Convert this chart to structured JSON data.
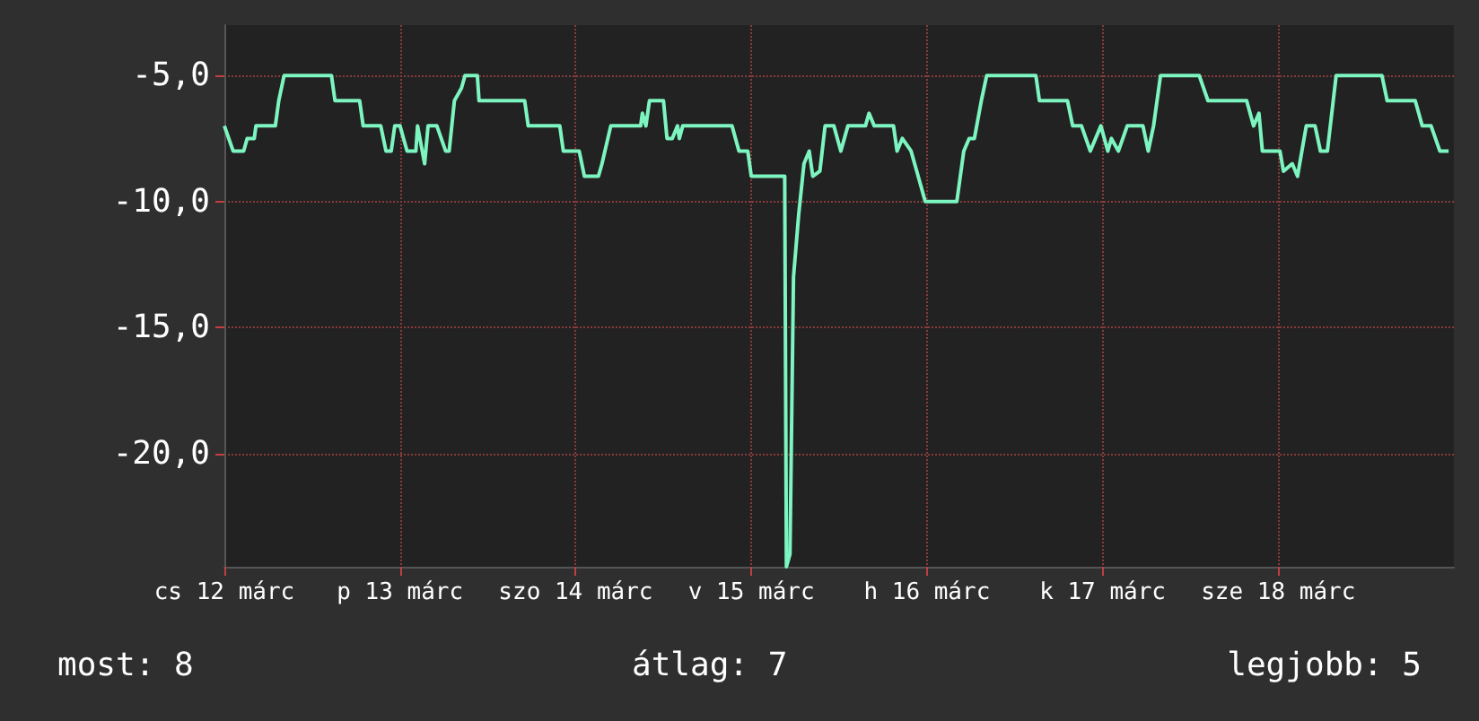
{
  "chart_data": {
    "type": "line",
    "x": [
      "--03-12T00:00",
      "--03-12T01:12",
      "--03-12T02:38",
      "--03-12T03:07",
      "--03-12T04:05",
      "--03-12T04:19",
      "--03-12T06:58",
      "--03-12T07:26",
      "--03-12T08:10",
      "--03-12T14:38",
      "--03-12T15:07",
      "--03-12T18:29",
      "--03-12T18:58",
      "--03-12T21:22",
      "--03-12T22:05",
      "--03-12T22:48",
      "--03-12T23:17",
      "--03-13T00:00",
      "--03-13T00:58",
      "--03-13T02:10",
      "--03-13T02:24",
      "--03-13T03:22",
      "--03-13T03:50",
      "--03-13T05:02",
      "--03-13T06:14",
      "--03-13T06:43",
      "--03-13T07:26",
      "--03-13T08:24",
      "--03-13T08:53",
      "--03-13T10:34",
      "--03-13T10:48",
      "--03-13T17:02",
      "--03-13T17:31",
      "--03-13T20:10",
      "--03-13T21:50",
      "--03-13T22:19",
      "--03-14T00:29",
      "--03-14T01:12",
      "--03-14T03:07",
      "--03-14T03:36",
      "--03-14T04:48",
      "--03-14T08:53",
      "--03-14T09:07",
      "--03-14T09:36",
      "--03-14T10:05",
      "--03-14T12:00",
      "--03-14T12:29",
      "--03-14T13:12",
      "--03-14T13:55",
      "--03-14T14:10",
      "--03-14T14:38",
      "--03-14T21:22",
      "--03-14T22:19",
      "--03-14T23:31",
      "--03-15T00:00",
      "--03-15T04:34",
      "--03-15T04:48",
      "--03-15T05:17",
      "--03-15T05:46",
      "--03-15T06:29",
      "--03-15T07:12",
      "--03-15T07:55",
      "--03-15T08:24",
      "--03-15T09:22",
      "--03-15T10:05",
      "--03-15T11:17",
      "--03-15T12:14",
      "--03-15T13:12",
      "--03-15T15:36",
      "--03-15T16:05",
      "--03-15T16:48",
      "--03-15T19:26",
      "--03-15T19:55",
      "--03-15T20:38",
      "--03-15T21:50",
      "--03-15T22:48",
      "--03-15T23:46",
      "--03-16T04:05",
      "--03-16T05:02",
      "--03-16T05:46",
      "--03-16T06:29",
      "--03-16T07:26",
      "--03-16T08:10",
      "--03-16T14:53",
      "--03-16T15:22",
      "--03-16T19:12",
      "--03-16T19:55",
      "--03-16T21:07",
      "--03-16T22:19",
      "--03-16T23:46",
      "--03-17T00:43",
      "--03-17T01:12",
      "--03-17T02:10",
      "--03-17T03:22",
      "--03-17T05:31",
      "--03-17T06:14",
      "--03-17T06:58",
      "--03-17T07:55",
      "--03-17T13:12",
      "--03-17T14:24",
      "--03-17T19:41",
      "--03-17T20:38",
      "--03-17T21:22",
      "--03-17T21:50",
      "--03-18T00:14",
      "--03-18T00:43",
      "--03-18T01:55",
      "--03-18T02:38",
      "--03-18T03:50",
      "--03-18T05:02",
      "--03-18T05:46",
      "--03-18T06:43",
      "--03-18T07:55",
      "--03-18T14:10",
      "--03-18T14:53",
      "--03-18T18:43",
      "--03-18T19:41",
      "--03-18T20:53",
      "--03-18T22:05",
      "--03-18T23:17"
    ],
    "values": [
      -7,
      -8,
      -8,
      -7.5,
      -7.5,
      -7,
      -7,
      -6,
      -5,
      -5,
      -6,
      -6,
      -7,
      -7,
      -8,
      -8,
      -7,
      -7,
      -8,
      -8,
      -7,
      -8.5,
      -7,
      -7,
      -8,
      -8,
      -6,
      -5.5,
      -5,
      -5,
      -6,
      -6,
      -7,
      -7,
      -7,
      -8,
      -8,
      -9,
      -9,
      -8.5,
      -7,
      -7,
      -6.5,
      -7,
      -6,
      -6,
      -7.5,
      -7.5,
      -7,
      -7.5,
      -7,
      -7,
      -8,
      -8,
      -9,
      -9,
      -24.5,
      -24,
      -13,
      -10.5,
      -8.5,
      -8,
      -9,
      -8.8,
      -7,
      -7,
      -8,
      -7,
      -7,
      -6.5,
      -7,
      -7,
      -8,
      -7.5,
      -8,
      -9,
      -10,
      -10,
      -8,
      -7.5,
      -7.5,
      -6,
      -5,
      -5,
      -6,
      -6,
      -7,
      -7,
      -8,
      -7,
      -8,
      -7.5,
      -8,
      -7,
      -7,
      -8,
      -7,
      -5,
      -5,
      -6,
      -6,
      -7,
      -6.5,
      -8,
      -8,
      -8.8,
      -8.5,
      -9,
      -7,
      -7,
      -8,
      -8,
      -5,
      -5,
      -6,
      -6,
      -7,
      -7,
      -8,
      -8
    ],
    "color": "#7df5c0",
    "xlim": [
      "--03-12",
      "--03-19"
    ],
    "xticks": [
      {
        "value": "--03-12",
        "label": "cs 12 márc"
      },
      {
        "value": "--03-13",
        "label": "p 13 márc"
      },
      {
        "value": "--03-14",
        "label": "szo 14 márc"
      },
      {
        "value": "--03-15",
        "label": "v 15 márc"
      },
      {
        "value": "--03-16",
        "label": "h 16 márc"
      },
      {
        "value": "--03-17",
        "label": "k 17 márc"
      },
      {
        "value": "--03-18",
        "label": "sze 18 márc"
      }
    ],
    "ylim": [
      -24.5,
      -3
    ],
    "yticks": [
      {
        "value": -5,
        "label": "-5,0"
      },
      {
        "value": -10,
        "label": "-10,0"
      },
      {
        "value": -15,
        "label": "-15,0"
      },
      {
        "value": -20,
        "label": "-20,0"
      }
    ],
    "grid": true,
    "line_style": "solid",
    "annotations": [
      "most: 8",
      "átlag: 7",
      "legjobb: 5"
    ]
  }
}
